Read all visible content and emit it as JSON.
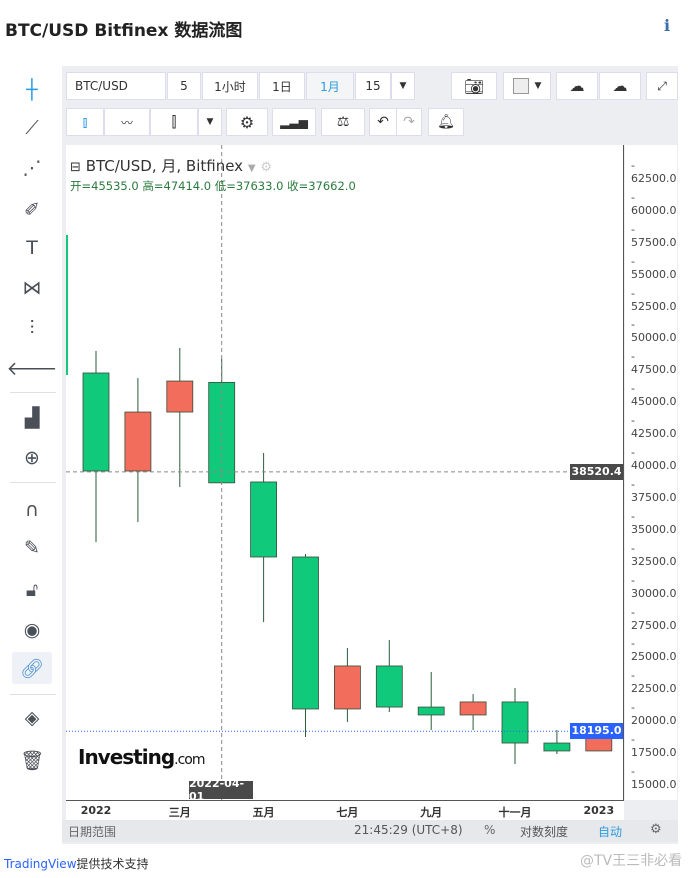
{
  "page": {
    "title": "BTC/USD Bitfinex 数据流图",
    "info_icon": "i"
  },
  "toolbar": {
    "symbol": "BTC/USD",
    "intervals": [
      "5",
      "1小时",
      "1日",
      "1月",
      "15"
    ],
    "active_interval": "1月"
  },
  "legend": {
    "title": "BTC/USD, 月, Bitfinex",
    "open_label": "开=",
    "open": "45535.0",
    "high_label": "高=",
    "high": "47414.0",
    "low_label": "低=",
    "low": "37633.0",
    "close_label": "收=",
    "close": "37662.0"
  },
  "crosshair": {
    "price_label": "38520.4",
    "date_label": "2022-04-01"
  },
  "last_price": {
    "label": "18195.0",
    "color": "#2962ff"
  },
  "colors": {
    "up": "#f26d5b",
    "down": "#10c97a",
    "bg": "#ffffff"
  },
  "bottom": {
    "date_range": "日期范围",
    "time": "21:45:29 (UTC+8)",
    "percent": "%",
    "log": "对数刻度",
    "auto": "自动"
  },
  "footer": {
    "brand": "TradingView",
    "text": "提供技术支持",
    "watermark": "@TV王三非必看"
  },
  "logo": "Investing.com",
  "chart_data": {
    "type": "candlestick",
    "y_ticks": [
      62500,
      60000,
      57500,
      55000,
      52500,
      50000,
      47500,
      45000,
      42500,
      40000,
      37500,
      35000,
      32500,
      30000,
      27500,
      25000,
      22500,
      20000,
      17500,
      15000
    ],
    "ylim": [
      13000,
      64500
    ],
    "x_labels": [
      {
        "label": "2022",
        "index": 0
      },
      {
        "label": "三月",
        "index": 2
      },
      {
        "label": "五月",
        "index": 4
      },
      {
        "label": "七月",
        "index": 6
      },
      {
        "label": "九月",
        "index": 8
      },
      {
        "label": "十一月",
        "index": 10
      },
      {
        "label": "2023",
        "index": 12
      }
    ],
    "candles": [
      {
        "o": 46270,
        "h": 48000,
        "l": 33020,
        "c": 38590
      },
      {
        "o": 38590,
        "h": 45880,
        "l": 34590,
        "c": 43210
      },
      {
        "o": 43210,
        "h": 48230,
        "l": 37330,
        "c": 45640
      },
      {
        "o": 45535,
        "h": 47414,
        "l": 37633,
        "c": 37662
      },
      {
        "o": 37730,
        "h": 40000,
        "l": 26750,
        "c": 31850
      },
      {
        "o": 31850,
        "h": 32080,
        "l": 17740,
        "c": 19940
      },
      {
        "o": 19940,
        "h": 24720,
        "l": 18920,
        "c": 23310
      },
      {
        "o": 23310,
        "h": 25340,
        "l": 19700,
        "c": 20090
      },
      {
        "o": 20090,
        "h": 22840,
        "l": 18290,
        "c": 19470
      },
      {
        "o": 19470,
        "h": 21110,
        "l": 18290,
        "c": 20490
      },
      {
        "o": 20490,
        "h": 21580,
        "l": 15630,
        "c": 17270
      },
      {
        "o": 17270,
        "h": 18290,
        "l": 16410,
        "c": 16650
      },
      {
        "o": 16650,
        "h": 18370,
        "l": 16650,
        "c": 18195
      }
    ]
  }
}
